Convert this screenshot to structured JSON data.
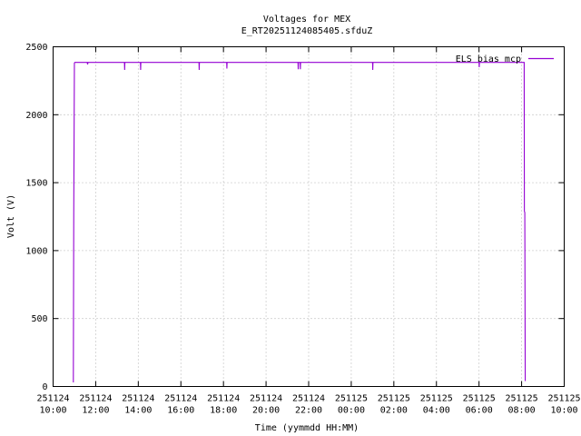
{
  "chart_data": {
    "type": "line",
    "title": "Voltages for MEX",
    "subtitle": "E_RT20251124085405.sfduZ",
    "xlabel": "Time (yymmdd HH:MM)",
    "ylabel": "Volt (V)",
    "xlim": [
      10,
      34
    ],
    "ylim": [
      0,
      2500
    ],
    "grid": true,
    "legend_position": "top-right",
    "x_ticks": [
      {
        "v": 10,
        "d": "251124",
        "t": "10:00"
      },
      {
        "v": 12,
        "d": "251124",
        "t": "12:00"
      },
      {
        "v": 14,
        "d": "251124",
        "t": "14:00"
      },
      {
        "v": 16,
        "d": "251124",
        "t": "16:00"
      },
      {
        "v": 18,
        "d": "251124",
        "t": "18:00"
      },
      {
        "v": 20,
        "d": "251124",
        "t": "20:00"
      },
      {
        "v": 22,
        "d": "251124",
        "t": "22:00"
      },
      {
        "v": 24,
        "d": "251125",
        "t": "00:00"
      },
      {
        "v": 26,
        "d": "251125",
        "t": "02:00"
      },
      {
        "v": 28,
        "d": "251125",
        "t": "04:00"
      },
      {
        "v": 30,
        "d": "251125",
        "t": "06:00"
      },
      {
        "v": 32,
        "d": "251125",
        "t": "08:00"
      },
      {
        "v": 34,
        "d": "251125",
        "t": "10:00"
      }
    ],
    "y_ticks": [
      0,
      500,
      1000,
      1500,
      2000,
      2500
    ],
    "series": [
      {
        "name": "ELS bias mcp",
        "color": "#9400d3",
        "x": [
          10.95,
          10.97,
          11.0,
          11.02,
          11.6,
          11.62,
          11.64,
          13.35,
          13.36,
          13.37,
          14.1,
          14.11,
          14.12,
          16.85,
          16.86,
          16.87,
          18.15,
          18.16,
          18.17,
          21.5,
          21.51,
          21.52,
          21.6,
          21.61,
          21.62,
          25.0,
          25.01,
          25.02,
          30.0,
          30.01,
          30.02,
          32.12,
          32.13,
          32.15,
          32.17
        ],
        "y": [
          30,
          1280,
          2380,
          2385,
          2385,
          2370,
          2385,
          2385,
          2330,
          2385,
          2385,
          2330,
          2385,
          2385,
          2330,
          2385,
          2385,
          2340,
          2385,
          2385,
          2335,
          2385,
          2385,
          2335,
          2385,
          2385,
          2330,
          2385,
          2385,
          2350,
          2385,
          2385,
          1290,
          1280,
          40
        ]
      }
    ]
  }
}
